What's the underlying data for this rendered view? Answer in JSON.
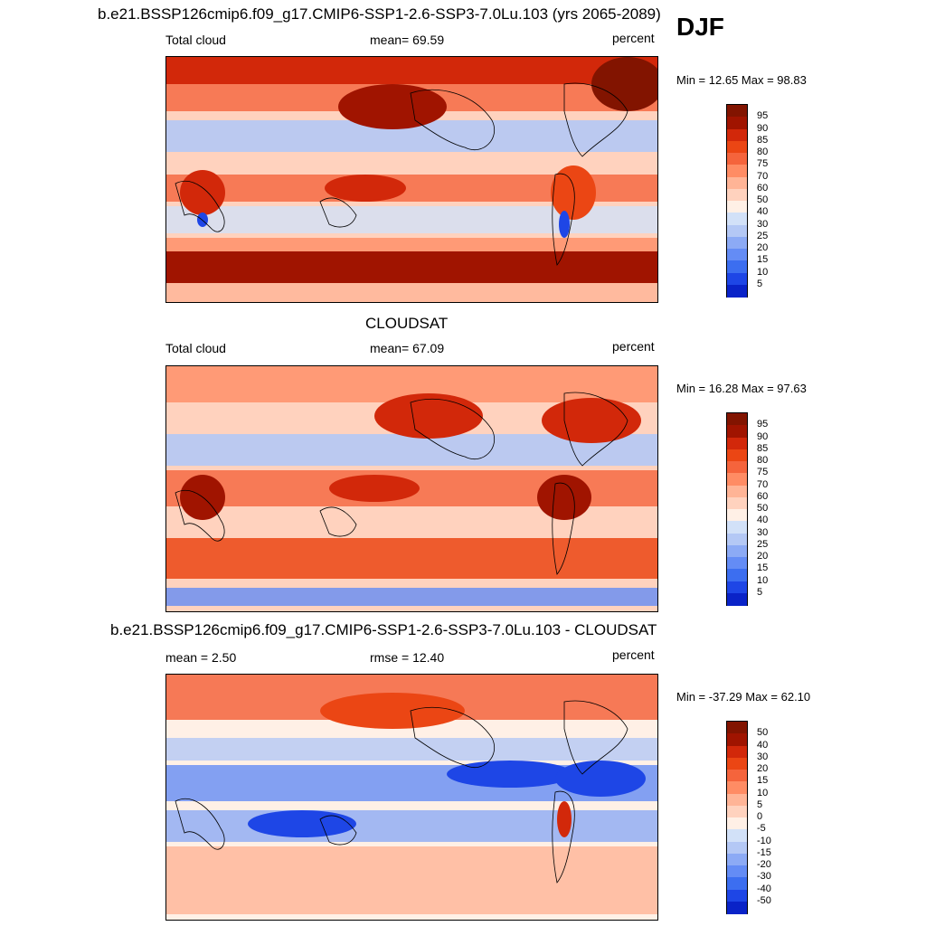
{
  "season": "DJF",
  "colors": {
    "cloud_scale": [
      "#00008b",
      "#0a23c8",
      "#1e46e6",
      "#3c6ef0",
      "#648cf5",
      "#8caaf5",
      "#b4c8f5",
      "#d2e1f8",
      "#fff0e6",
      "#ffd2be",
      "#ffb496",
      "#ff8c64",
      "#f5643c",
      "#eb4614",
      "#d2280a",
      "#a01400",
      "#821400"
    ],
    "diff_scale": [
      "#00008b",
      "#0a23c8",
      "#1e46e6",
      "#3c6ef0",
      "#648cf5",
      "#8caaf5",
      "#b4c8f5",
      "#d2e1f8",
      "#fff0e6",
      "#ffd2be",
      "#ffb496",
      "#ff8c64",
      "#f5643c",
      "#eb4614",
      "#d2280a",
      "#a01400",
      "#821400"
    ]
  },
  "panels": [
    {
      "id": "model",
      "title": "b.e21.BSSP126cmip6.f09_g17.CMIP6-SSP1-2.6-SSP3-7.0Lu.103 (yrs 2065-2089)",
      "left_label": "Total cloud",
      "center_label": "mean=  69.59",
      "right_label": "percent",
      "minmax": "Min =  12.65 Max =  98.83",
      "colorbar_labels": [
        "95",
        "90",
        "85",
        "80",
        "75",
        "70",
        "60",
        "50",
        "40",
        "30",
        "25",
        "20",
        "15",
        "10",
        "5"
      ]
    },
    {
      "id": "obs",
      "title": "CLOUDSAT",
      "left_label": "Total cloud",
      "center_label": "mean=  67.09",
      "right_label": "percent",
      "minmax": "Min =  16.28 Max =  97.63",
      "colorbar_labels": [
        "95",
        "90",
        "85",
        "80",
        "75",
        "70",
        "60",
        "50",
        "40",
        "30",
        "25",
        "20",
        "15",
        "10",
        "5"
      ]
    },
    {
      "id": "diff",
      "title": "b.e21.BSSP126cmip6.f09_g17.CMIP6-SSP1-2.6-SSP3-7.0Lu.103 - CLOUDSAT",
      "left_label": "mean =   2.50",
      "center_label": "rmse =  12.40",
      "right_label": "percent",
      "minmax": "Min = -37.29 Max =  62.10",
      "colorbar_labels": [
        "50",
        "40",
        "30",
        "20",
        "15",
        "10",
        "5",
        "0",
        "-5",
        "-10",
        "-15",
        "-20",
        "-30",
        "-40",
        "-50"
      ]
    }
  ]
}
